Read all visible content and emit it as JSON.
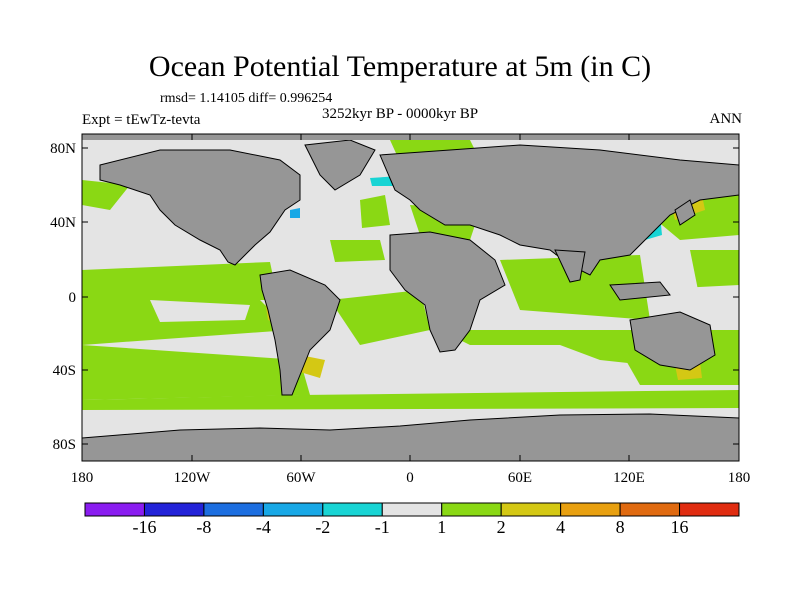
{
  "title": "Ocean Potential Temperature at 5m (in C)",
  "stats_text": "rmsd= 1.14105 diff= 0.996254",
  "experiment": "Expt = tEwTz-tevta",
  "period": "3252kyr BP - 0000kyr BP",
  "season": "ANN",
  "lat_ticks": [
    "80N",
    "40N",
    "0",
    "40S",
    "80S"
  ],
  "lon_ticks": [
    "180",
    "120W",
    "60W",
    "0",
    "60E",
    "120E",
    "180"
  ],
  "colorbar": {
    "labels": [
      "-16",
      "-8",
      "-4",
      "-2",
      "-1",
      "1",
      "2",
      "4",
      "8",
      "16"
    ],
    "colors": [
      "#8a1cf0",
      "#2323d8",
      "#1c6ee0",
      "#18a8e6",
      "#18d4d4",
      "#e4e4e4",
      "#8ad814",
      "#d4c814",
      "#e8a010",
      "#e06a10",
      "#e02c10"
    ]
  },
  "colors": {
    "land": "#969696",
    "ocean_plus2": "#8ad814",
    "ocean_neutral": "#e4e4e4",
    "ocean_plus4": "#d4c814",
    "ocean_minus2": "#18d4d4",
    "ocean_minus4": "#18a8e6"
  }
}
